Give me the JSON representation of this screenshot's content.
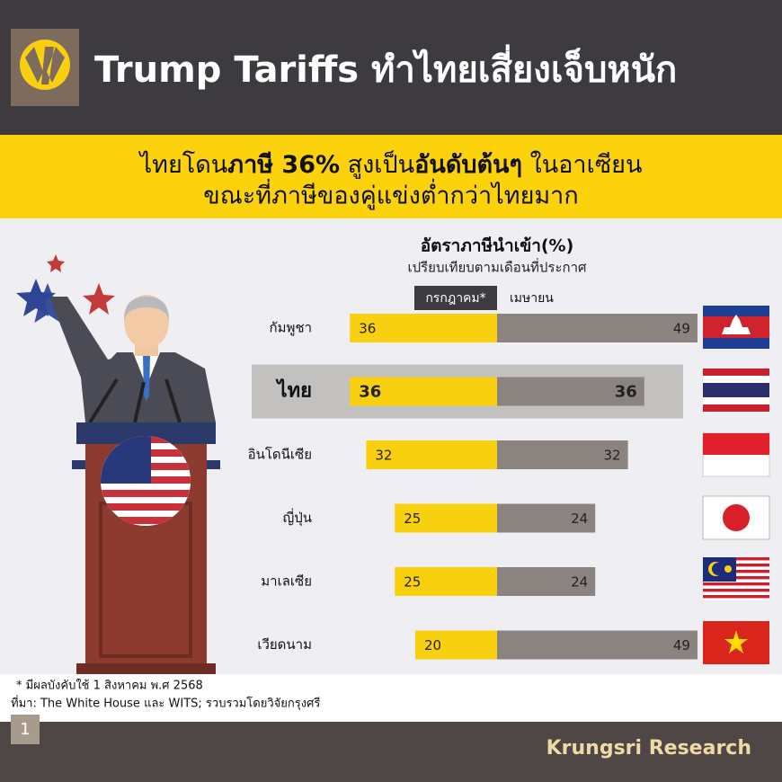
{
  "header": {
    "title": "Trump Tariffs ทำไทยเสี่ยงเจ็บหนัก"
  },
  "headline": {
    "line1": [
      {
        "text": "ไทยโดน",
        "bold": false
      },
      {
        "text": "ภาษี 36%",
        "bold": true
      },
      {
        "text": " สูงเป็น",
        "bold": false
      },
      {
        "text": "อันดับต้นๆ",
        "bold": true
      },
      {
        "text": " ในอาเซียน",
        "bold": false
      }
    ],
    "line2": "ขณะที่ภาษีของคู่แข่งต่ำกว่าไทยมาก"
  },
  "chart_data": {
    "type": "bar",
    "title": "อัตราภาษีนำเข้า(%)",
    "subtitle": "เปรียบเทียบตามเดือนที่ประกาศ",
    "categories": [
      "กัมพูชา",
      "ไทย",
      "อินโดนีเซีย",
      "ญี่ปุ่น",
      "มาเลเซีย",
      "เวียดนาม"
    ],
    "highlight": "ไทย",
    "series": [
      {
        "name": "กรกฎาคม*",
        "color": "#f8d00f",
        "values": [
          36,
          36,
          32,
          25,
          25,
          20
        ]
      },
      {
        "name": "เมษายน",
        "color": "#8b8380",
        "values": [
          49,
          36,
          32,
          24,
          24,
          49
        ]
      }
    ]
  },
  "footnotes": [
    "* มีผลบังคับใช้ 1 สิงหาคม พ.ศ 2568",
    "ที่มา: The White House และ WITS; รวบรวมโดยวิจัยกรุงศรี"
  ],
  "footer": {
    "page": "1",
    "brand": "Krungsri Research"
  }
}
